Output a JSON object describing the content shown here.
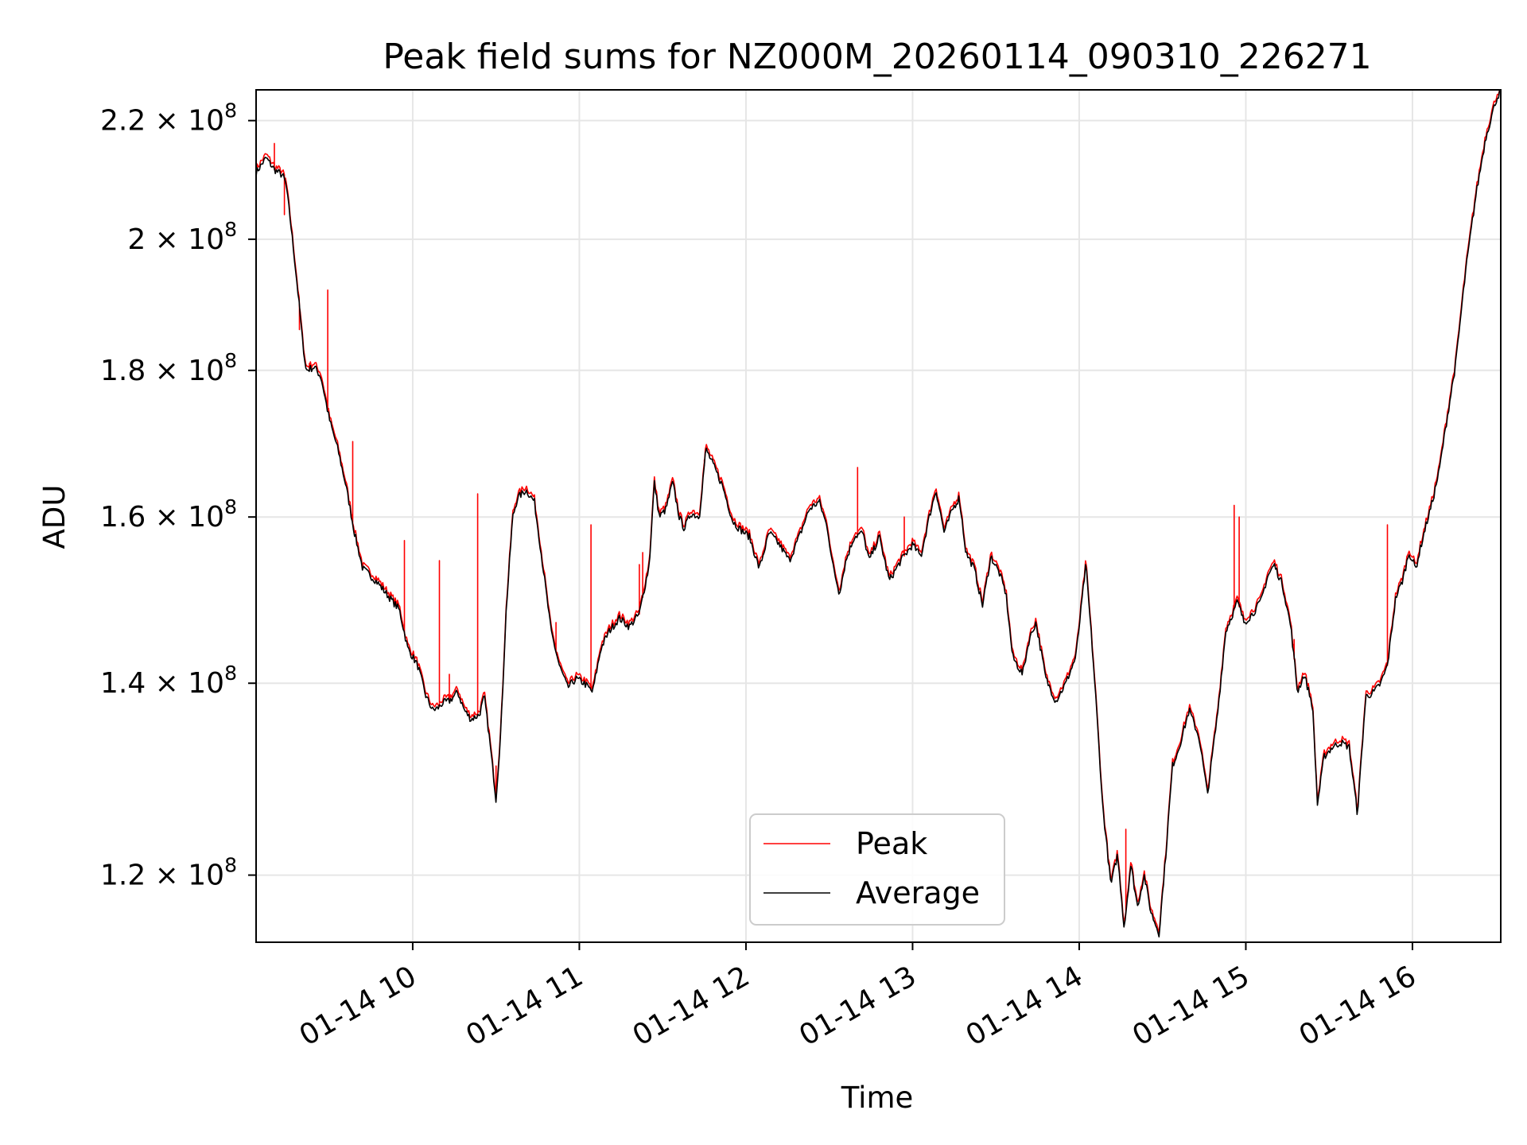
{
  "chart_data": {
    "type": "line",
    "title": "Peak field sums for NZ000M_20260114_090310_226271",
    "xlabel": "Time",
    "ylabel": "ADU",
    "y_scale": "log",
    "xlim": [
      9.06,
      16.53
    ],
    "ylim": [
      113700000.0,
      225500000.0
    ],
    "grid": true,
    "legend_location": "lower center",
    "x_ticks": [
      {
        "value": 10,
        "label": "01-14 10"
      },
      {
        "value": 11,
        "label": "01-14 11"
      },
      {
        "value": 12,
        "label": "01-14 12"
      },
      {
        "value": 13,
        "label": "01-14 13"
      },
      {
        "value": 14,
        "label": "01-14 14"
      },
      {
        "value": 15,
        "label": "01-14 15"
      },
      {
        "value": 16,
        "label": "01-14 16"
      }
    ],
    "y_ticks": [
      {
        "value": 120000000.0,
        "mantissa": "1.2",
        "exponent": "8"
      },
      {
        "value": 140000000.0,
        "mantissa": "1.4",
        "exponent": "8"
      },
      {
        "value": 160000000.0,
        "mantissa": "1.6",
        "exponent": "8"
      },
      {
        "value": 180000000.0,
        "mantissa": "1.8",
        "exponent": "8"
      },
      {
        "value": 200000000.0,
        "mantissa": "2",
        "exponent": "8"
      },
      {
        "value": 220000000.0,
        "mantissa": "2.2",
        "exponent": "8"
      }
    ],
    "series": [
      {
        "name": "Peak",
        "color": "#ff0000",
        "spikes": [
          [
            9.17,
            216000000.0
          ],
          [
            9.23,
            204000000.0
          ],
          [
            9.32,
            186000000.0
          ],
          [
            9.38,
            181000000.0
          ],
          [
            9.49,
            192000000.0
          ],
          [
            9.64,
            170000000.0
          ],
          [
            9.95,
            157000000.0
          ],
          [
            10.16,
            154500000.0
          ],
          [
            10.22,
            141000000.0
          ],
          [
            10.39,
            163000000.0
          ],
          [
            10.5,
            131000000.0
          ],
          [
            10.86,
            147000000.0
          ],
          [
            11.07,
            159000000.0
          ],
          [
            11.36,
            154000000.0
          ],
          [
            11.38,
            155500000.0
          ],
          [
            11.75,
            167500000.0
          ],
          [
            12.67,
            166500000.0
          ],
          [
            12.95,
            160000000.0
          ],
          [
            14.28,
            124500000.0
          ],
          [
            14.93,
            161500000.0
          ],
          [
            14.96,
            160000000.0
          ],
          [
            15.29,
            145000000.0
          ],
          [
            15.85,
            159000000.0
          ]
        ]
      },
      {
        "name": "Average",
        "color": "#000000",
        "x": [
          9.06,
          9.12,
          9.17,
          9.22,
          9.24,
          9.27,
          9.31,
          9.34,
          9.36,
          9.41,
          9.45,
          9.5,
          9.55,
          9.6,
          9.65,
          9.7,
          9.78,
          9.86,
          9.92,
          9.97,
          10.03,
          10.08,
          10.12,
          10.15,
          10.18,
          10.22,
          10.27,
          10.31,
          10.35,
          10.4,
          10.43,
          10.46,
          10.5,
          10.53,
          10.56,
          10.6,
          10.63,
          10.68,
          10.73,
          10.78,
          10.83,
          10.88,
          10.93,
          10.98,
          11.03,
          11.08,
          11.13,
          11.18,
          11.24,
          11.3,
          11.36,
          11.42,
          11.45,
          11.48,
          11.52,
          11.56,
          11.6,
          11.63,
          11.67,
          11.72,
          11.76,
          11.81,
          11.86,
          11.92,
          11.96,
          12.02,
          12.08,
          12.14,
          12.2,
          12.26,
          12.32,
          12.38,
          12.44,
          12.49,
          12.52,
          12.56,
          12.6,
          12.65,
          12.7,
          12.74,
          12.8,
          12.86,
          12.93,
          13.0,
          13.05,
          13.1,
          13.14,
          13.19,
          13.24,
          13.28,
          13.32,
          13.37,
          13.42,
          13.47,
          13.52,
          13.56,
          13.6,
          13.66,
          13.7,
          13.74,
          13.8,
          13.86,
          13.92,
          13.98,
          14.0,
          14.04,
          14.09,
          14.14,
          14.19,
          14.23,
          14.27,
          14.31,
          14.35,
          14.39,
          14.43,
          14.48,
          14.52,
          14.56,
          14.6,
          14.66,
          14.72,
          14.77,
          14.83,
          14.88,
          14.92,
          14.95,
          14.99,
          15.04,
          15.09,
          15.13,
          15.17,
          15.22,
          15.27,
          15.31,
          15.35,
          15.4,
          15.43,
          15.47,
          15.52,
          15.57,
          15.62,
          15.67,
          15.72,
          15.77,
          15.81,
          15.85,
          15.9,
          15.94,
          15.98,
          16.02,
          16.07,
          16.12,
          16.16,
          16.2,
          16.26,
          16.32,
          16.38,
          16.44,
          16.5,
          16.53
        ],
        "values": [
          211000000.0,
          213500000.0,
          211500000.0,
          210500000.0,
          209000000.0,
          202000000.0,
          192000000.0,
          184000000.0,
          180000000.0,
          180500000.0,
          179000000.0,
          173000000.0,
          169000000.0,
          164000000.0,
          158000000.0,
          153500000.0,
          152000000.0,
          150000000.0,
          148500000.0,
          144000000.0,
          142000000.0,
          138500000.0,
          137000000.0,
          137200000.0,
          137800000.0,
          138000000.0,
          139000000.0,
          137000000.0,
          136000000.0,
          136500000.0,
          138500000.0,
          134000000.0,
          127500000.0,
          135000000.0,
          148000000.0,
          160000000.0,
          162500000.0,
          163500000.0,
          162000000.0,
          154000000.0,
          146000000.0,
          142000000.0,
          139500000.0,
          140500000.0,
          140000000.0,
          139000000.0,
          144000000.0,
          146000000.0,
          147500000.0,
          146500000.0,
          148000000.0,
          154000000.0,
          164500000.0,
          160000000.0,
          161000000.0,
          164500000.0,
          160000000.0,
          158500000.0,
          160500000.0,
          160000000.0,
          169000000.0,
          166500000.0,
          164000000.0,
          159500000.0,
          158500000.0,
          157500000.0,
          153500000.0,
          158000000.0,
          156500000.0,
          154500000.0,
          157500000.0,
          161000000.0,
          162000000.0,
          158500000.0,
          154000000.0,
          150500000.0,
          154500000.0,
          157500000.0,
          158000000.0,
          154500000.0,
          157500000.0,
          152000000.0,
          154500000.0,
          156500000.0,
          155000000.0,
          160000000.0,
          163500000.0,
          158000000.0,
          161000000.0,
          162500000.0,
          155500000.0,
          153500000.0,
          149000000.0,
          155000000.0,
          153000000.0,
          150500000.0,
          143000000.0,
          141000000.0,
          145000000.0,
          147000000.0,
          140500000.0,
          138000000.0,
          140000000.0,
          143000000.0,
          146500000.0,
          154000000.0,
          141000000.0,
          127000000.0,
          119000000.0,
          122000000.0,
          115000000.0,
          121000000.0,
          117000000.0,
          120000000.0,
          116500000.0,
          114500000.0,
          122000000.0,
          131000000.0,
          133000000.0,
          137000000.0,
          134000000.0,
          128000000.0,
          136500000.0,
          146000000.0,
          148000000.0,
          149500000.0,
          147000000.0,
          148000000.0,
          149500000.0,
          152500000.0,
          154000000.0,
          151500000.0,
          146500000.0,
          139000000.0,
          141000000.0,
          137500000.0,
          127000000.0,
          132000000.0,
          133000000.0,
          133500000.0,
          133000000.0,
          126000000.0,
          138500000.0,
          139000000.0,
          140000000.0,
          142000000.0,
          150000000.0,
          152000000.0,
          155500000.0,
          153500000.0,
          158000000.0,
          162000000.0,
          166000000.0,
          172000000.0,
          181000000.0,
          195000000.0,
          207000000.0,
          217000000.0,
          223500000.0,
          225500000.0
        ]
      }
    ]
  }
}
